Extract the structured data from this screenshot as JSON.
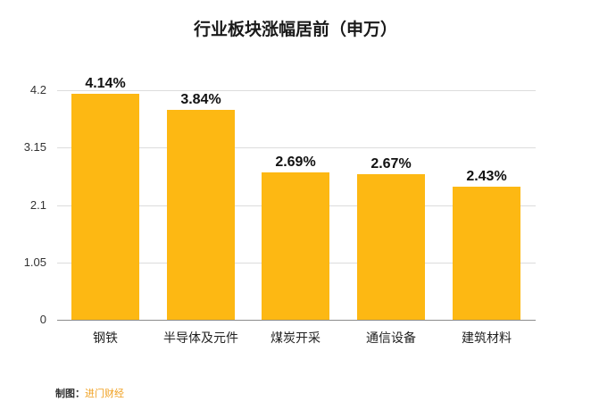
{
  "chart_data": {
    "type": "bar",
    "title": "行业板块涨幅居前（申万）",
    "xlabel": "",
    "ylabel": "",
    "categories": [
      "钢铁",
      "半导体及元件",
      "煤炭开采",
      "通信设备",
      "建筑材料"
    ],
    "values": [
      4.14,
      3.84,
      2.69,
      2.67,
      2.43
    ],
    "value_labels": [
      "4.14%",
      "3.84%",
      "2.69%",
      "2.67%",
      "2.43%"
    ],
    "ylim": [
      0,
      4.2
    ],
    "yticks": [
      "0",
      "1.05",
      "2.1",
      "3.15",
      "4.2"
    ],
    "grid": true,
    "legend": "none",
    "bar_color": "#FDB813"
  },
  "credit": {
    "label": "制图：",
    "source": "进门财经"
  }
}
